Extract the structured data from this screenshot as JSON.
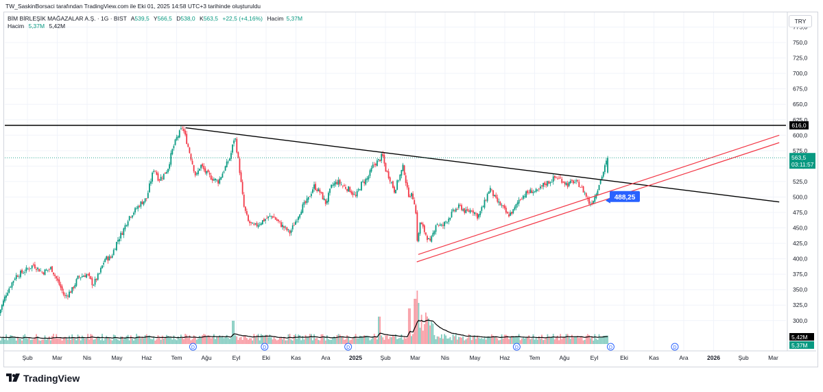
{
  "header": {
    "attribution": "TW_SaskinBorsaci tarafından TradingView.com ile Eki 01, 2025 14:58 UTC+3 tarihinde oluşturuldu"
  },
  "legend": {
    "symbol": "BİM BİRLEŞİK MAĞAZALAR A.Ş. · 1G · BIST",
    "open_label": "A",
    "open": "539,5",
    "high_label": "Y",
    "high": "566,5",
    "low_label": "D",
    "low": "538,0",
    "close_label": "K",
    "close": "563,5",
    "change": "+22,5 (+4,16%)",
    "volume_label": "Hacim",
    "volume": "5,37M",
    "volume_ma_label": "Hacim",
    "volume_ma_1": "5,37M",
    "volume_ma_2": "5,42M"
  },
  "currency": "TRY",
  "brand": {
    "name": "TradingView"
  },
  "colors": {
    "up": "#089981",
    "down": "#f23645",
    "channel": "#f23645",
    "line": "#000000",
    "grid": "#f0f3fa",
    "badge": "#2962ff",
    "price_line": "#089981"
  },
  "chart_data": {
    "type": "candlestick",
    "title": "BİM BİRLEŞİK MAĞAZALAR A.Ş. · 1G · BIST",
    "y_axis": {
      "ticks": [
        "300,0",
        "325,0",
        "350,0",
        "375,0",
        "400,0",
        "425,0",
        "450,0",
        "475,0",
        "500,0",
        "525,0",
        "550,0",
        "575,0",
        "600,0",
        "625,0",
        "650,0",
        "675,0",
        "700,0",
        "725,0",
        "750,0",
        "775,0"
      ],
      "tick_values": [
        300,
        325,
        350,
        375,
        400,
        425,
        450,
        475,
        500,
        525,
        550,
        575,
        600,
        625,
        650,
        675,
        700,
        725,
        750,
        775
      ],
      "range": [
        282,
        790
      ]
    },
    "x_axis": {
      "labels": [
        "Şub",
        "Mar",
        "Nis",
        "May",
        "Haz",
        "Tem",
        "Ağu",
        "Eyl",
        "Eki",
        "Kas",
        "Ara",
        "2025",
        "Şub",
        "Mar",
        "Nis",
        "May",
        "Haz",
        "Tem",
        "Ağu",
        "Eyl",
        "Eki",
        "Kas",
        "Ara",
        "2026",
        "Şub",
        "Mar"
      ],
      "month_index": [
        1,
        2,
        3,
        4,
        5,
        6,
        7,
        8,
        9,
        10,
        11,
        12,
        13,
        14,
        15,
        16,
        17,
        18,
        19,
        20,
        21,
        22,
        23,
        24,
        25,
        26
      ],
      "start": "2024-01",
      "end": "2026-03"
    },
    "anchors": [
      {
        "m": 0.05,
        "v": 312
      },
      {
        "m": 0.3,
        "v": 345
      },
      {
        "m": 0.6,
        "v": 372
      },
      {
        "m": 0.9,
        "v": 380
      },
      {
        "m": 1.2,
        "v": 390
      },
      {
        "m": 1.5,
        "v": 378
      },
      {
        "m": 1.8,
        "v": 385
      },
      {
        "m": 2.1,
        "v": 355
      },
      {
        "m": 2.25,
        "v": 338
      },
      {
        "m": 2.5,
        "v": 350
      },
      {
        "m": 2.7,
        "v": 370
      },
      {
        "m": 3.0,
        "v": 375
      },
      {
        "m": 3.2,
        "v": 358
      },
      {
        "m": 3.4,
        "v": 375
      },
      {
        "m": 3.6,
        "v": 400
      },
      {
        "m": 3.8,
        "v": 402
      },
      {
        "m": 4.0,
        "v": 428
      },
      {
        "m": 4.2,
        "v": 445
      },
      {
        "m": 4.4,
        "v": 468
      },
      {
        "m": 4.6,
        "v": 478
      },
      {
        "m": 4.8,
        "v": 490
      },
      {
        "m": 5.0,
        "v": 498
      },
      {
        "m": 5.1,
        "v": 520
      },
      {
        "m": 5.25,
        "v": 548
      },
      {
        "m": 5.4,
        "v": 528
      },
      {
        "m": 5.55,
        "v": 535
      },
      {
        "m": 5.7,
        "v": 545
      },
      {
        "m": 5.85,
        "v": 575
      },
      {
        "m": 6.0,
        "v": 595
      },
      {
        "m": 6.2,
        "v": 613
      },
      {
        "m": 6.35,
        "v": 588
      },
      {
        "m": 6.5,
        "v": 560
      },
      {
        "m": 6.65,
        "v": 532
      },
      {
        "m": 6.8,
        "v": 552
      },
      {
        "m": 7.0,
        "v": 538
      },
      {
        "m": 7.2,
        "v": 530
      },
      {
        "m": 7.4,
        "v": 525
      },
      {
        "m": 7.6,
        "v": 545
      },
      {
        "m": 7.8,
        "v": 565
      },
      {
        "m": 7.95,
        "v": 600
      },
      {
        "m": 8.1,
        "v": 548
      },
      {
        "m": 8.25,
        "v": 485
      },
      {
        "m": 8.4,
        "v": 460
      },
      {
        "m": 8.6,
        "v": 452
      },
      {
        "m": 8.9,
        "v": 462
      },
      {
        "m": 9.2,
        "v": 470
      },
      {
        "m": 9.5,
        "v": 455
      },
      {
        "m": 9.8,
        "v": 442
      },
      {
        "m": 10.0,
        "v": 462
      },
      {
        "m": 10.2,
        "v": 483
      },
      {
        "m": 10.4,
        "v": 495
      },
      {
        "m": 10.6,
        "v": 518
      },
      {
        "m": 10.8,
        "v": 508
      },
      {
        "m": 11.0,
        "v": 490
      },
      {
        "m": 11.2,
        "v": 518
      },
      {
        "m": 11.4,
        "v": 525
      },
      {
        "m": 11.6,
        "v": 517
      },
      {
        "m": 11.8,
        "v": 512
      },
      {
        "m": 12.0,
        "v": 500
      },
      {
        "m": 12.2,
        "v": 522
      },
      {
        "m": 12.4,
        "v": 530
      },
      {
        "m": 12.6,
        "v": 552
      },
      {
        "m": 12.8,
        "v": 560
      },
      {
        "m": 12.9,
        "v": 568
      },
      {
        "m": 13.0,
        "v": 545
      },
      {
        "m": 13.15,
        "v": 530
      },
      {
        "m": 13.3,
        "v": 510
      },
      {
        "m": 13.45,
        "v": 530
      },
      {
        "m": 13.6,
        "v": 550
      },
      {
        "m": 13.75,
        "v": 505
      },
      {
        "m": 13.9,
        "v": 502
      },
      {
        "m": 14.0,
        "v": 488
      },
      {
        "m": 14.08,
        "v": 420
      },
      {
        "m": 14.15,
        "v": 460
      },
      {
        "m": 14.3,
        "v": 445
      },
      {
        "m": 14.5,
        "v": 425
      },
      {
        "m": 14.7,
        "v": 458
      },
      {
        "m": 14.9,
        "v": 452
      },
      {
        "m": 15.1,
        "v": 465
      },
      {
        "m": 15.3,
        "v": 478
      },
      {
        "m": 15.5,
        "v": 485
      },
      {
        "m": 15.7,
        "v": 475
      },
      {
        "m": 15.9,
        "v": 480
      },
      {
        "m": 16.1,
        "v": 468
      },
      {
        "m": 16.3,
        "v": 488
      },
      {
        "m": 16.5,
        "v": 515
      },
      {
        "m": 16.7,
        "v": 495
      },
      {
        "m": 16.9,
        "v": 485
      },
      {
        "m": 17.1,
        "v": 470
      },
      {
        "m": 17.3,
        "v": 478
      },
      {
        "m": 17.5,
        "v": 498
      },
      {
        "m": 17.7,
        "v": 505
      },
      {
        "m": 17.9,
        "v": 510
      },
      {
        "m": 18.1,
        "v": 508
      },
      {
        "m": 18.3,
        "v": 520
      },
      {
        "m": 18.5,
        "v": 525
      },
      {
        "m": 18.7,
        "v": 532
      },
      {
        "m": 18.9,
        "v": 528
      },
      {
        "m": 19.1,
        "v": 520
      },
      {
        "m": 19.3,
        "v": 525
      },
      {
        "m": 19.5,
        "v": 520
      },
      {
        "m": 19.7,
        "v": 505
      },
      {
        "m": 19.85,
        "v": 488
      },
      {
        "m": 20.0,
        "v": 498
      },
      {
        "m": 20.15,
        "v": 520
      },
      {
        "m": 20.3,
        "v": 540
      },
      {
        "m": 20.45,
        "v": 563.5
      }
    ],
    "volume": {
      "ma_label": "5,42M",
      "last_label": "5,37M",
      "spikes": [
        {
          "m": 14.05,
          "h": 78
        },
        {
          "m": 14.1,
          "h": 60
        },
        {
          "m": 13.8,
          "h": 52
        },
        {
          "m": 12.8,
          "h": 40
        },
        {
          "m": 7.9,
          "h": 34
        },
        {
          "m": 14.0,
          "h": 66
        }
      ]
    },
    "lines": [
      {
        "name": "resistance",
        "value": 616.0,
        "label": "616,0"
      },
      {
        "name": "downtrend",
        "from": {
          "m": 6.3,
          "v": 612
        },
        "to": {
          "m": 26.2,
          "v": 492
        }
      },
      {
        "name": "channel-lower",
        "from": {
          "m": 14.05,
          "v": 395
        },
        "to": {
          "m": 26.2,
          "v": 588
        }
      },
      {
        "name": "channel-upper",
        "from": {
          "m": 14.1,
          "v": 407
        },
        "to": {
          "m": 26.2,
          "v": 600
        }
      }
    ],
    "annotations": {
      "badge": "488,25",
      "last_price": "563,5",
      "countdown": "03:11:57",
      "dividend_marker": "D",
      "dividend_months": [
        6.55,
        8.95,
        11.75,
        17.4,
        20.55,
        22.7
      ]
    }
  }
}
